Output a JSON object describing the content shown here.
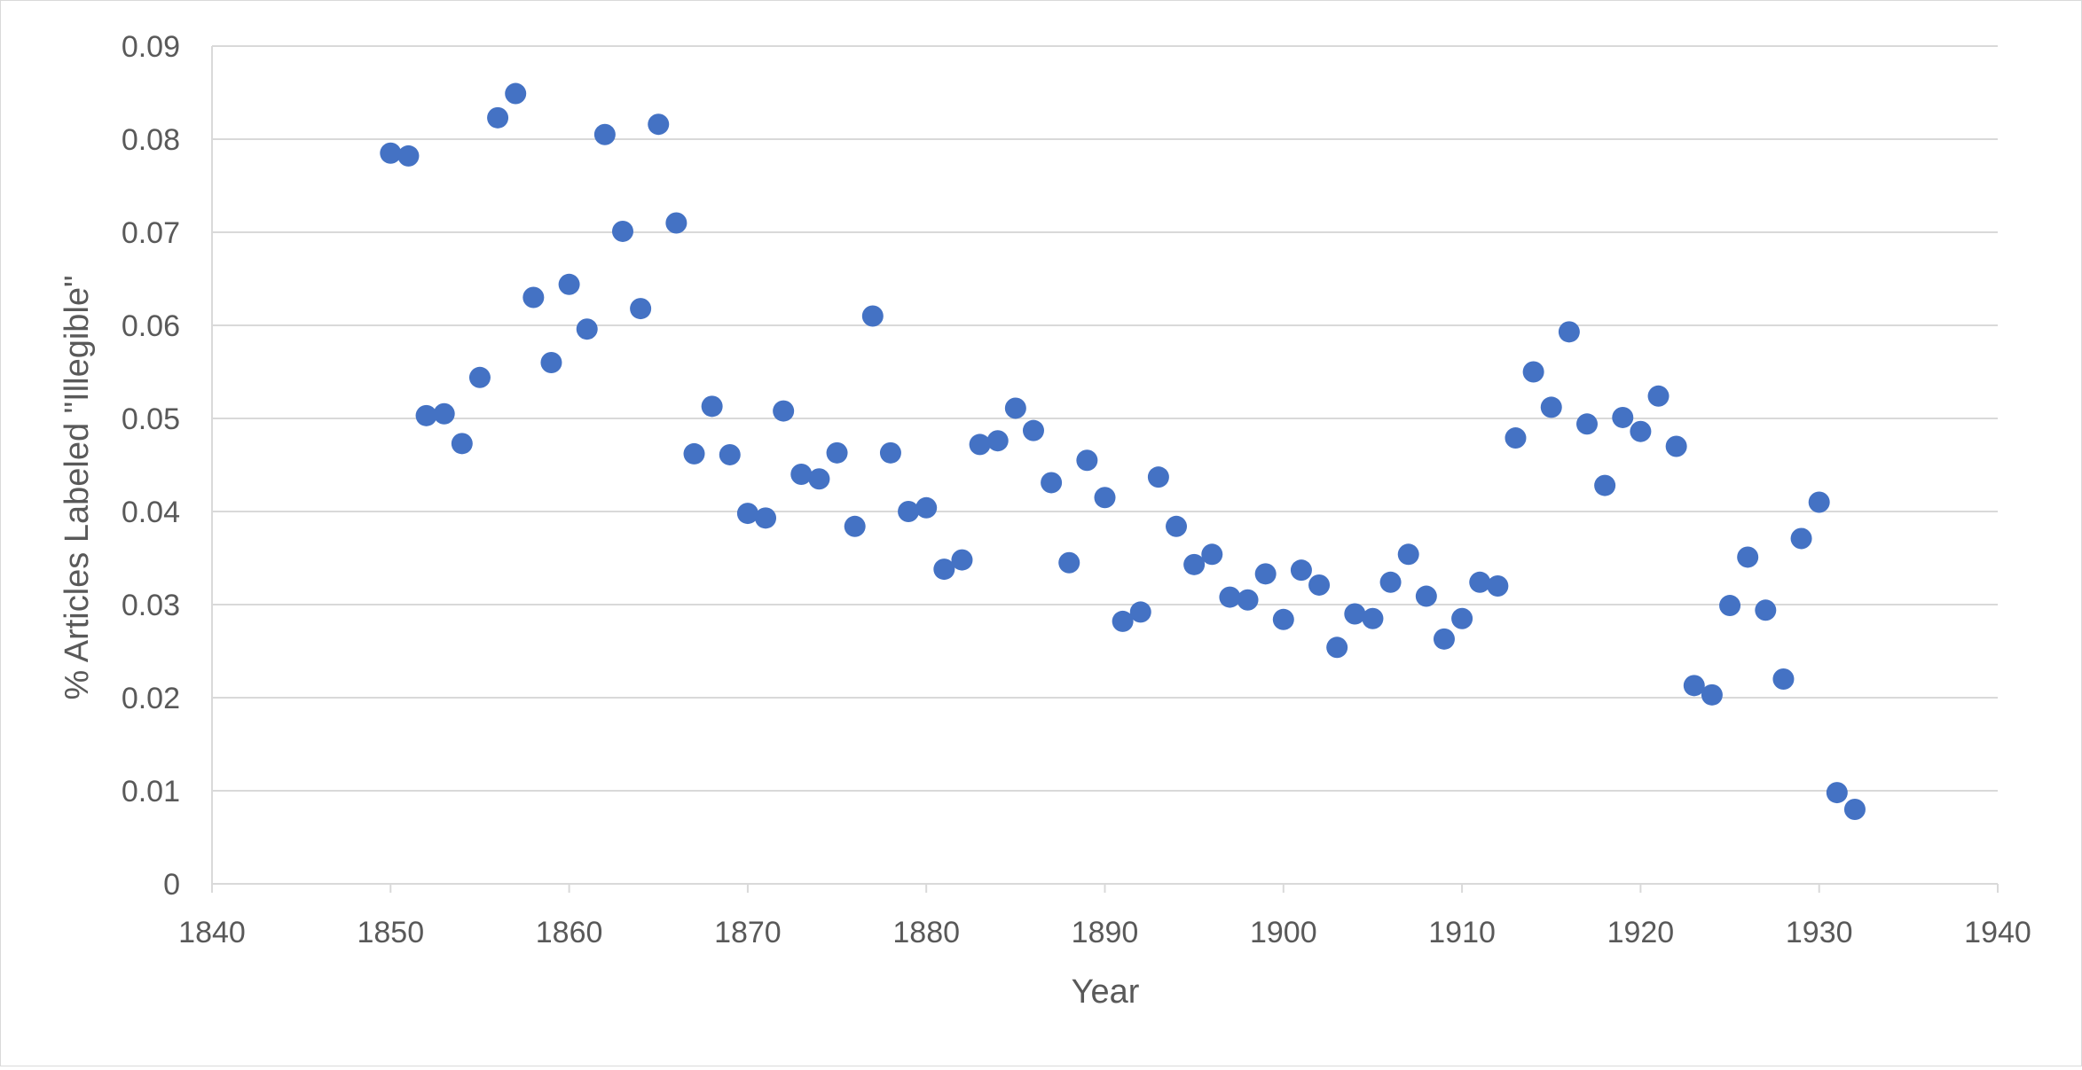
{
  "chart_data": {
    "type": "scatter",
    "xlabel": "Year",
    "ylabel": "% Articles Labeled \"Illegible\"",
    "xlim": [
      1840,
      1940
    ],
    "ylim": [
      0,
      0.09
    ],
    "x_ticks": [
      "1840",
      "1850",
      "1860",
      "1870",
      "1880",
      "1890",
      "1900",
      "1910",
      "1920",
      "1930",
      "1940"
    ],
    "y_ticks": [
      "0",
      "0.01",
      "0.02",
      "0.03",
      "0.04",
      "0.05",
      "0.06",
      "0.07",
      "0.08",
      "0.09"
    ],
    "grid": "horizontal",
    "marker_color": "#4472c4",
    "gridline_color": "#d9d9d9",
    "points": [
      [
        1850,
        0.0785
      ],
      [
        1851,
        0.0782
      ],
      [
        1852,
        0.0503
      ],
      [
        1853,
        0.0505
      ],
      [
        1854,
        0.0473
      ],
      [
        1855,
        0.0544
      ],
      [
        1856,
        0.0823
      ],
      [
        1857,
        0.0849
      ],
      [
        1858,
        0.063
      ],
      [
        1859,
        0.056
      ],
      [
        1860,
        0.0644
      ],
      [
        1861,
        0.0596
      ],
      [
        1862,
        0.0805
      ],
      [
        1863,
        0.0701
      ],
      [
        1864,
        0.0618
      ],
      [
        1865,
        0.0816
      ],
      [
        1866,
        0.071
      ],
      [
        1867,
        0.0462
      ],
      [
        1868,
        0.0513
      ],
      [
        1869,
        0.0461
      ],
      [
        1870,
        0.0398
      ],
      [
        1871,
        0.0393
      ],
      [
        1872,
        0.0508
      ],
      [
        1873,
        0.044
      ],
      [
        1874,
        0.0435
      ],
      [
        1875,
        0.0463
      ],
      [
        1876,
        0.0384
      ],
      [
        1877,
        0.061
      ],
      [
        1878,
        0.0463
      ],
      [
        1879,
        0.04
      ],
      [
        1880,
        0.0404
      ],
      [
        1881,
        0.0338
      ],
      [
        1882,
        0.0348
      ],
      [
        1883,
        0.0472
      ],
      [
        1884,
        0.0476
      ],
      [
        1885,
        0.0511
      ],
      [
        1886,
        0.0487
      ],
      [
        1887,
        0.0431
      ],
      [
        1888,
        0.0345
      ],
      [
        1889,
        0.0455
      ],
      [
        1890,
        0.0415
      ],
      [
        1891,
        0.0282
      ],
      [
        1892,
        0.0292
      ],
      [
        1893,
        0.0437
      ],
      [
        1894,
        0.0384
      ],
      [
        1895,
        0.0343
      ],
      [
        1896,
        0.0354
      ],
      [
        1897,
        0.0308
      ],
      [
        1898,
        0.0305
      ],
      [
        1899,
        0.0333
      ],
      [
        1900,
        0.0284
      ],
      [
        1901,
        0.0337
      ],
      [
        1902,
        0.0321
      ],
      [
        1903,
        0.0254
      ],
      [
        1904,
        0.029
      ],
      [
        1905,
        0.0285
      ],
      [
        1906,
        0.0324
      ],
      [
        1907,
        0.0354
      ],
      [
        1908,
        0.0309
      ],
      [
        1909,
        0.0263
      ],
      [
        1910,
        0.0285
      ],
      [
        1911,
        0.0324
      ],
      [
        1912,
        0.032
      ],
      [
        1913,
        0.0479
      ],
      [
        1914,
        0.055
      ],
      [
        1915,
        0.0512
      ],
      [
        1916,
        0.0593
      ],
      [
        1917,
        0.0494
      ],
      [
        1918,
        0.0428
      ],
      [
        1919,
        0.0501
      ],
      [
        1920,
        0.0486
      ],
      [
        1921,
        0.0524
      ],
      [
        1922,
        0.047
      ],
      [
        1923,
        0.0213
      ],
      [
        1924,
        0.0203
      ],
      [
        1925,
        0.0299
      ],
      [
        1926,
        0.0351
      ],
      [
        1927,
        0.0294
      ],
      [
        1928,
        0.022
      ],
      [
        1929,
        0.0371
      ],
      [
        1930,
        0.041
      ],
      [
        1931,
        0.0098
      ],
      [
        1932,
        0.008
      ]
    ]
  }
}
